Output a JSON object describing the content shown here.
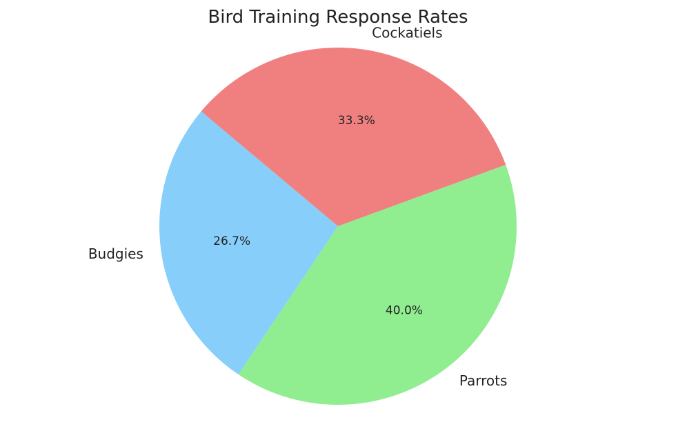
{
  "chart_data": {
    "type": "pie",
    "title": "Bird Training Response Rates",
    "start_angle_deg": 140,
    "direction": "counterclockwise",
    "slices": [
      {
        "label": "Budgies",
        "value": 26.7,
        "pct_label": "26.7%",
        "color": "#87CEFA"
      },
      {
        "label": "Parrots",
        "value": 40.0,
        "pct_label": "40.0%",
        "color": "#90EE90"
      },
      {
        "label": "Cockatiels",
        "value": 33.3,
        "pct_label": "33.3%",
        "color": "#F08080"
      }
    ]
  }
}
